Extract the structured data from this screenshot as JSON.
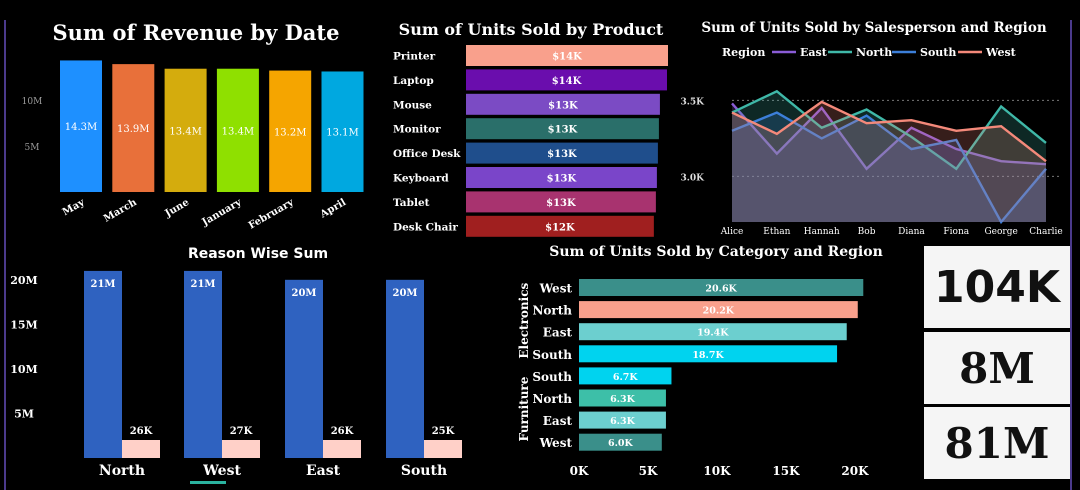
{
  "revenue_by_date": {
    "title": "Sum of Revenue by Date",
    "chart_data": {
      "type": "bar",
      "title": "Sum of Revenue by Date",
      "categories": [
        "May",
        "March",
        "June",
        "January",
        "February",
        "April"
      ],
      "values": [
        14.3,
        13.9,
        13.4,
        13.4,
        13.2,
        13.1
      ],
      "labels": [
        "14.3M",
        "13.9M",
        "13.4M",
        "13.4M",
        "13.2M",
        "13.1M"
      ],
      "colors": [
        "#1e90ff",
        "#e8703a",
        "#d4ac0d",
        "#8fe000",
        "#f5a500",
        "#00a8e0"
      ],
      "yticks": [
        {
          "v": 5,
          "t": "5M"
        },
        {
          "v": 10,
          "t": "10M"
        }
      ],
      "ylim": [
        0,
        15
      ]
    }
  },
  "units_by_product": {
    "title": "Sum of Units Sold by Product",
    "chart_data": {
      "type": "bar",
      "orientation": "horizontal",
      "title": "Sum of Units Sold by Product",
      "categories": [
        "Printer",
        "Laptop",
        "Mouse",
        "Monitor",
        "Office Desk",
        "Keyboard",
        "Tablet",
        "Desk Chair"
      ],
      "values": [
        14,
        14,
        13,
        13,
        13,
        13,
        13,
        12
      ],
      "labels": [
        "$14K",
        "$14K",
        "$13K",
        "$13K",
        "$13K",
        "$13K",
        "$13K",
        "$12K"
      ],
      "colors": [
        "#f9a08c",
        "#6a0dad",
        "#7b4bc4",
        "#2a6f6a",
        "#1f4e8c",
        "#7a45c9",
        "#a8336f",
        "#a01f1f"
      ],
      "lengths": [
        1.0,
        0.995,
        0.96,
        0.955,
        0.95,
        0.945,
        0.94,
        0.93
      ]
    }
  },
  "units_by_salesperson": {
    "title": "Sum of Units Sold by Salesperson and Region",
    "legend_title": "Region",
    "chart_data": {
      "type": "area",
      "title": "Sum of Units Sold by Salesperson and Region",
      "categories": [
        "Alice",
        "Ethan",
        "Hannah",
        "Bob",
        "Diana",
        "Fiona",
        "George",
        "Charlie"
      ],
      "ylim": [
        2700,
        3700
      ],
      "yticks": [
        {
          "v": 3000,
          "t": "3.0K"
        },
        {
          "v": 3500,
          "t": "3.5K"
        }
      ],
      "series": [
        {
          "name": "East",
          "color": "#8a5cd6",
          "values": [
            3480,
            3150,
            3450,
            3050,
            3320,
            3180,
            3100,
            3080
          ]
        },
        {
          "name": "North",
          "color": "#3fb8a8",
          "values": [
            3420,
            3560,
            3320,
            3440,
            3260,
            3050,
            3460,
            3220
          ]
        },
        {
          "name": "South",
          "color": "#3c7fd9",
          "values": [
            3300,
            3420,
            3250,
            3400,
            3180,
            3240,
            2700,
            3050
          ]
        },
        {
          "name": "West",
          "color": "#f4897a",
          "values": [
            3420,
            3280,
            3490,
            3350,
            3370,
            3300,
            3330,
            3100
          ]
        }
      ]
    }
  },
  "reason_wise": {
    "title": "Reason Wise Sum",
    "chart_data": {
      "type": "bar",
      "title": "Reason Wise Sum",
      "categories": [
        "North",
        "West",
        "East",
        "South"
      ],
      "series": [
        {
          "color": "#2f62c0",
          "values": [
            21,
            21,
            20,
            20
          ],
          "labels": [
            "21M",
            "21M",
            "20M",
            "20M"
          ]
        },
        {
          "color": "#ffd0c8",
          "values": [
            0.026,
            0.027,
            0.026,
            0.025
          ],
          "labels": [
            "26K",
            "27K",
            "26K",
            "25K"
          ]
        }
      ],
      "yticks": [
        {
          "v": 5,
          "t": "5M"
        },
        {
          "v": 10,
          "t": "10M"
        },
        {
          "v": 15,
          "t": "15M"
        },
        {
          "v": 20,
          "t": "20M"
        }
      ],
      "ylim": [
        0,
        22
      ]
    }
  },
  "units_by_category": {
    "title": "Sum of Units Sold by Category and Region",
    "chart_data": {
      "type": "bar",
      "orientation": "horizontal",
      "title": "Sum of Units Sold by Category and Region",
      "groups": [
        "Electronics",
        "Furniture"
      ],
      "rows": [
        {
          "group": "Electronics",
          "region": "West",
          "value": 20.6,
          "label": "20.6K",
          "color": "#3a8f8a"
        },
        {
          "group": "Electronics",
          "region": "North",
          "value": 20.2,
          "label": "20.2K",
          "color": "#f9a08c"
        },
        {
          "group": "Electronics",
          "region": "East",
          "value": 19.4,
          "label": "19.4K",
          "color": "#6ccfcf"
        },
        {
          "group": "Electronics",
          "region": "South",
          "value": 18.7,
          "label": "18.7K",
          "color": "#00d3ef"
        },
        {
          "group": "Furniture",
          "region": "South",
          "value": 6.7,
          "label": "6.7K",
          "color": "#00d3ef"
        },
        {
          "group": "Furniture",
          "region": "North",
          "value": 6.3,
          "label": "6.3K",
          "color": "#3dbfa8"
        },
        {
          "group": "Furniture",
          "region": "East",
          "value": 6.3,
          "label": "6.3K",
          "color": "#6ccfcf"
        },
        {
          "group": "Furniture",
          "region": "West",
          "value": 6.0,
          "label": "6.0K",
          "color": "#3a8f8a"
        }
      ],
      "xticks": [
        {
          "v": 0,
          "t": "0K"
        },
        {
          "v": 5,
          "t": "5K"
        },
        {
          "v": 10,
          "t": "10K"
        },
        {
          "v": 15,
          "t": "15K"
        },
        {
          "v": 20,
          "t": "20K"
        }
      ],
      "xlim": [
        0,
        21
      ]
    }
  },
  "kpis": [
    {
      "value": "104K"
    },
    {
      "value": "8M"
    },
    {
      "value": "81M"
    }
  ]
}
